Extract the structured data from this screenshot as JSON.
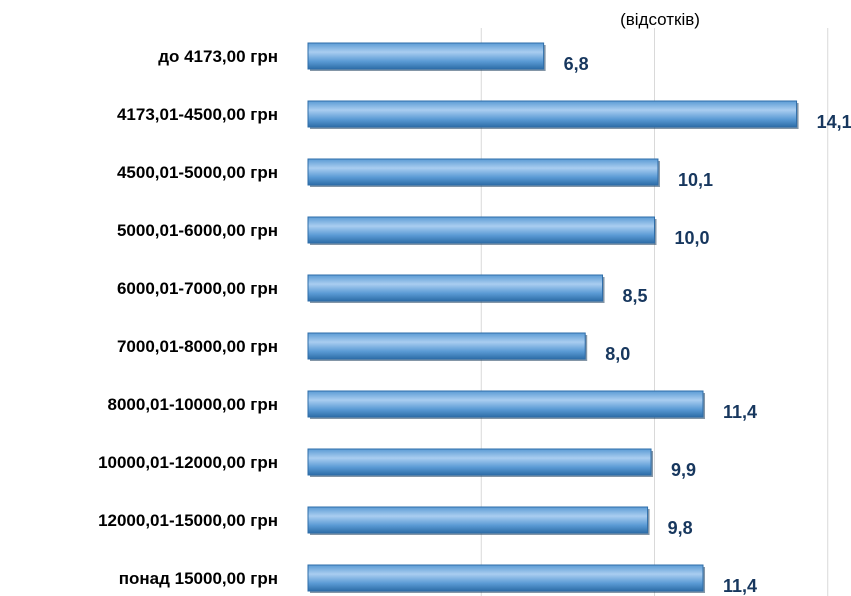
{
  "chart_data": {
    "type": "bar",
    "orientation": "horizontal",
    "unit_note": "(відсотків)",
    "categories": [
      "до 4173,00 грн",
      "4173,01-4500,00 грн",
      "4500,01-5000,00 грн",
      "5000,01-6000,00 грн",
      "6000,01-7000,00 грн",
      "7000,01-8000,00 грн",
      "8000,01-10000,00 грн",
      "10000,01-12000,00 грн",
      "12000,01-15000,00 грн",
      "понад 15000,00 грн"
    ],
    "values": [
      6.8,
      14.1,
      10.1,
      10.0,
      8.5,
      8.0,
      11.4,
      9.9,
      9.8,
      11.4
    ],
    "value_labels": [
      "6,8",
      "14,1",
      "10,1",
      "10,0",
      "8,5",
      "8,0",
      "11,4",
      "9,9",
      "9,8",
      "11,4"
    ],
    "xlim": [
      0,
      15
    ],
    "gridlines_at": [
      5,
      10,
      15
    ],
    "grid": true,
    "legend": "none",
    "colors": {
      "bar_light": "#a9cdf0",
      "bar_mid": "#5b9bd5",
      "bar_dark": "#2e6da8",
      "value_label": "#17375e",
      "gridline": "#d9d9d9"
    }
  }
}
